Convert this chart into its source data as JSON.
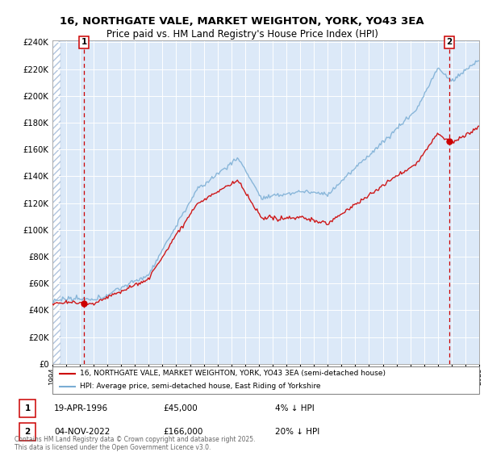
{
  "title_line1": "16, NORTHGATE VALE, MARKET WEIGHTON, YORK, YO43 3EA",
  "title_line2": "Price paid vs. HM Land Registry's House Price Index (HPI)",
  "legend_line1": "16, NORTHGATE VALE, MARKET WEIGHTON, YORK, YO43 3EA (semi-detached house)",
  "legend_line2": "HPI: Average price, semi-detached house, East Riding of Yorkshire",
  "annotation1_date": "19-APR-1996",
  "annotation1_price": "£45,000",
  "annotation1_note": "4% ↓ HPI",
  "annotation2_date": "04-NOV-2022",
  "annotation2_price": "£166,000",
  "annotation2_note": "20% ↓ HPI",
  "footnote": "Contains HM Land Registry data © Crown copyright and database right 2025.\nThis data is licensed under the Open Government Licence v3.0.",
  "xmin": 1994,
  "xmax": 2025,
  "ymin": 0,
  "ymax": 240000,
  "purchase1_year": 1996.3,
  "purchase1_price": 45000,
  "purchase2_year": 2022.84,
  "purchase2_price": 166000,
  "bg_color": "#dce9f8",
  "red_line_color": "#cc0000",
  "blue_line_color": "#7aadd4"
}
